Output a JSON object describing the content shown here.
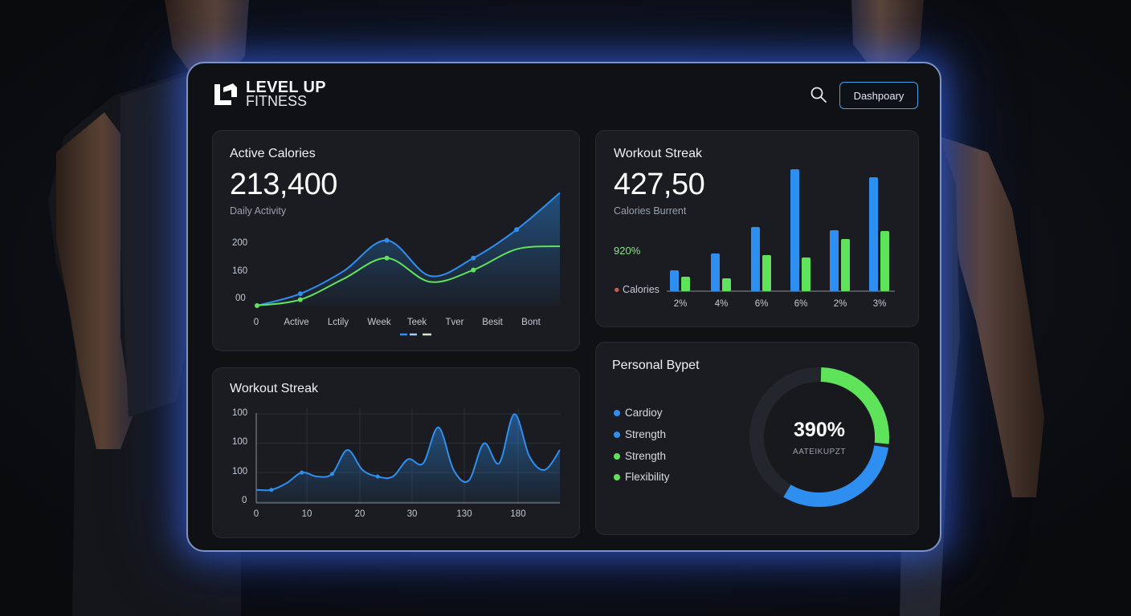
{
  "brand": {
    "line1": "LEVEL UP",
    "line2": "FITNESS"
  },
  "header": {
    "dashboard_label": "Dashpoary"
  },
  "colors": {
    "blue": "#2f8ff0",
    "green": "#5fe35a",
    "panel_border": "#7d93c4",
    "card_bg": "#1a1c21"
  },
  "icons": {
    "search": "search-icon",
    "logo": "logo-mark-icon"
  },
  "active_calories": {
    "title": "Active Calories",
    "value": "213,400",
    "subtitle": "Daily Activity",
    "y_ticks": [
      "200",
      "160",
      "00"
    ],
    "x_ticks": [
      "0",
      "Active",
      "Lctily",
      "Week",
      "Teek",
      "Tver",
      "Besit",
      "Bont"
    ]
  },
  "workout_streak_bars": {
    "title": "Workout Streak",
    "value": "427,50",
    "subtitle": "Calories Burrent",
    "side_label_1": "920%",
    "side_label_2": "Calories",
    "x_ticks": [
      "2%",
      "4%",
      "6%",
      "6%",
      "2%",
      "3%"
    ]
  },
  "workout_streak_line": {
    "title": "Workout Streak",
    "y_ticks": [
      "100",
      "100",
      "100",
      "0"
    ],
    "x_ticks": [
      "0",
      "10",
      "20",
      "30",
      "130",
      "180"
    ]
  },
  "personal_budget": {
    "title": "Personal Bypet",
    "center_value": "390%",
    "center_label": "AATEIKUPZT",
    "legend": [
      {
        "label": "Cardioy",
        "color": "#2f8ff0"
      },
      {
        "label": "Strength",
        "color": "#2f8ff0"
      },
      {
        "label": "Strength",
        "color": "#5fe35a"
      },
      {
        "label": "Flexibility",
        "color": "#5fe35a"
      }
    ]
  },
  "chart_data": [
    {
      "type": "line",
      "title": "Active Calories",
      "x": [
        "Active",
        "Lctily",
        "Week",
        "Teek",
        "Tver",
        "Besit",
        "Bont"
      ],
      "series": [
        {
          "values": [
            120,
            158,
            210,
            150,
            180,
            228,
            290
          ]
        },
        {
          "values": [
            110,
            145,
            180,
            140,
            160,
            195,
            200
          ]
        }
      ]
    },
    {
      "type": "bar",
      "title": "Workout Streak",
      "categories": [
        "2%",
        "4%",
        "6%",
        "6%",
        "2%",
        "3%"
      ],
      "series": [
        {
          "values": [
            26,
            47,
            80,
            152,
            76,
            142
          ]
        },
        {
          "values": [
            18,
            16,
            45,
            42,
            65,
            75
          ]
        }
      ]
    },
    {
      "type": "area",
      "title": "Workout Streak",
      "x": [
        0,
        5,
        10,
        15,
        20,
        25,
        30,
        35,
        40,
        45,
        50,
        55,
        60,
        65,
        70,
        75,
        80,
        85,
        90,
        95,
        100
      ],
      "values": [
        5,
        5,
        10,
        18,
        15,
        17,
        35,
        20,
        15,
        15,
        28,
        25,
        52,
        20,
        12,
        40,
        25,
        62,
        30,
        20,
        35
      ]
    },
    {
      "type": "pie",
      "title": "Personal Bypet",
      "center_value": "390%",
      "slices": [
        {
          "value": 27,
          "color": "#5fe35a"
        },
        {
          "value": 32,
          "color": "#2f8ff0"
        },
        {
          "value": 41,
          "color": "#23262c"
        }
      ]
    }
  ]
}
